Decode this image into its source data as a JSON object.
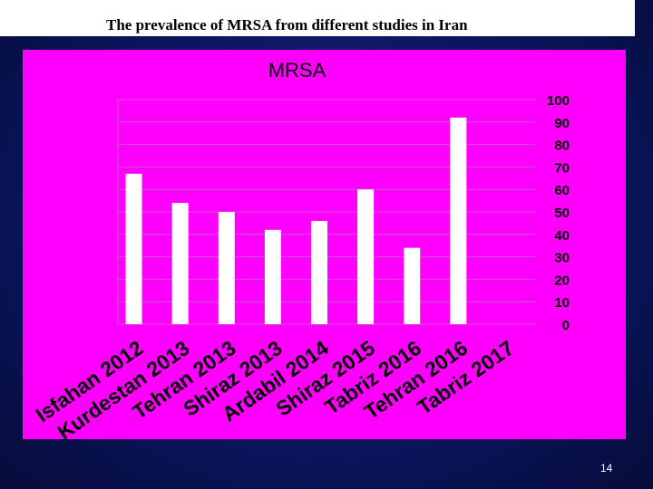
{
  "slide": {
    "title": "The prevalence of MRSA from different studies in Iran",
    "number": "14",
    "colors": {
      "background": "#0b1560",
      "panel": "#ff00ff",
      "bar": "#ffffff",
      "grid": "#cc55cc"
    }
  },
  "chart_data": {
    "type": "bar",
    "title": "MRSA",
    "categories": [
      "Isfahan 2012",
      "Kurdestan 2013",
      "Tehran 2013",
      "Shiraz 2013",
      "Ardabil 2014",
      "Shiraz 2015",
      "Tabriz 2016",
      "Tehran 2016",
      "Tabriz 2017"
    ],
    "values": [
      67,
      54,
      50,
      42,
      46,
      60,
      34,
      92,
      0
    ],
    "ylim": [
      0,
      100
    ],
    "yticks": [
      100,
      90,
      80,
      70,
      60,
      50,
      40,
      30,
      20,
      10,
      0
    ],
    "yaxis_side": "right",
    "grid": true,
    "xlabel": "",
    "ylabel": ""
  }
}
